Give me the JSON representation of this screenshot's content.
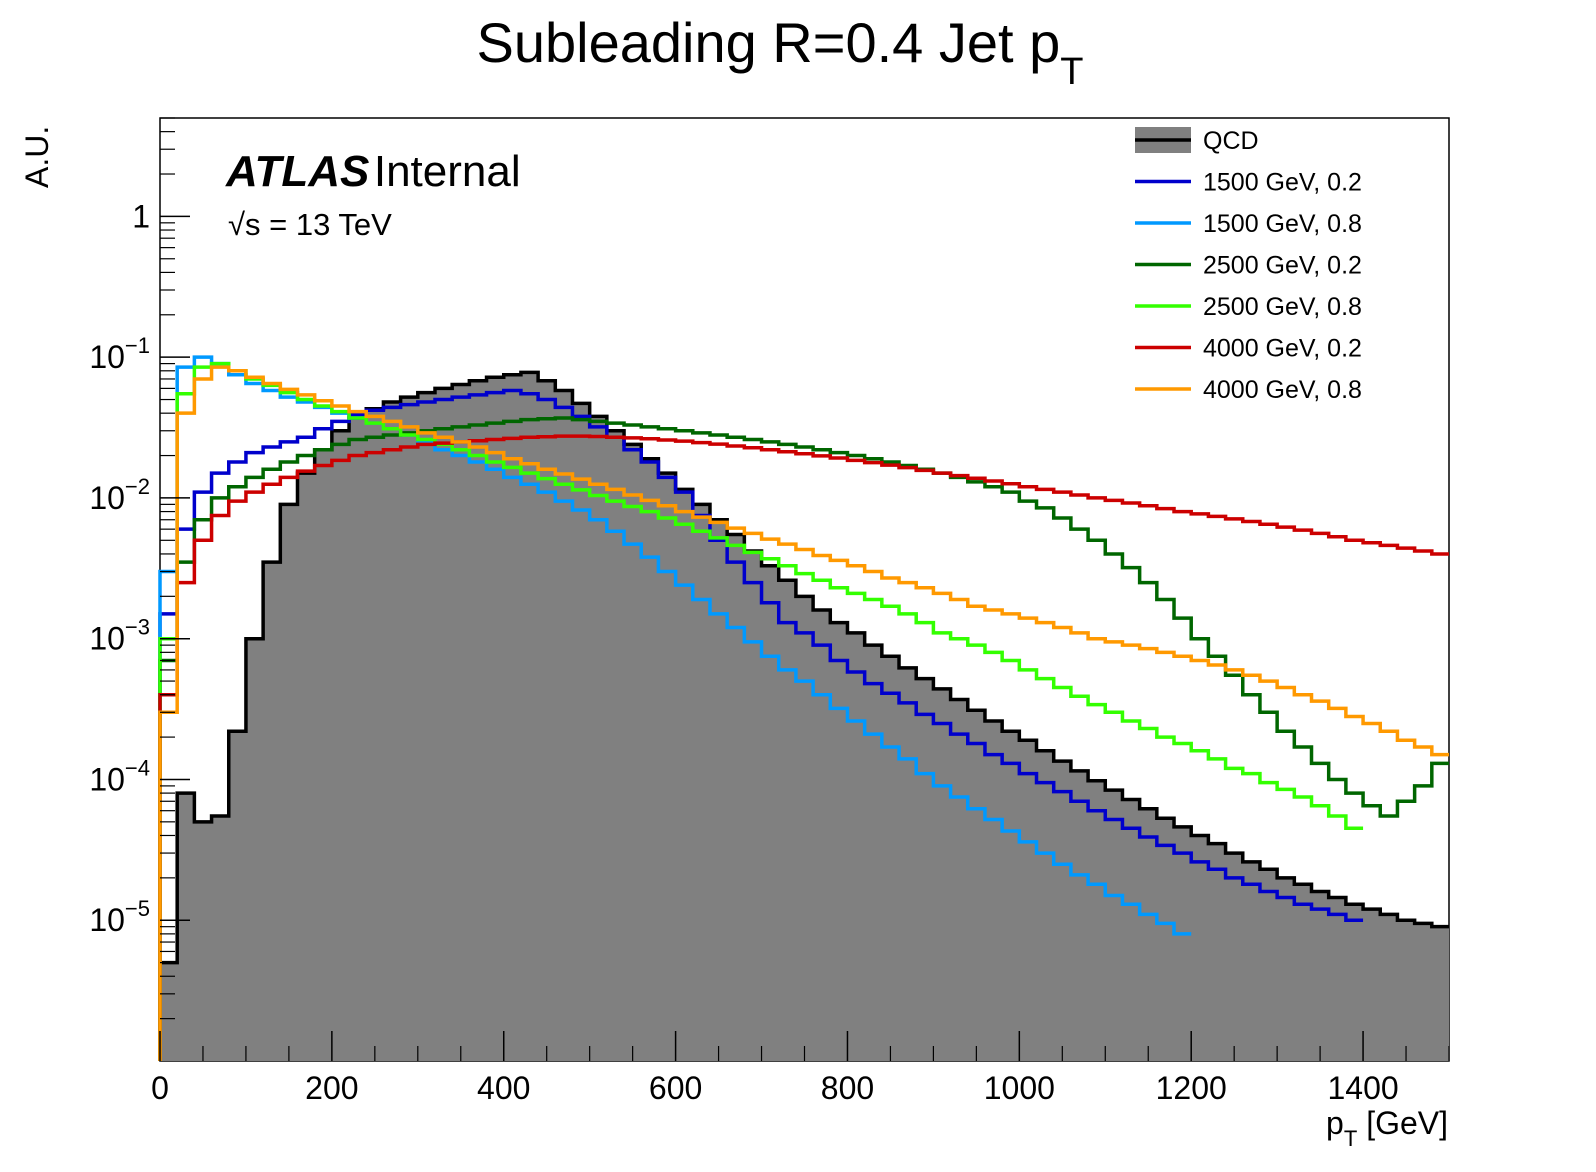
{
  "chart_data": {
    "type": "histogram",
    "title": {
      "main": "Subleading R=0.4 Jet p",
      "sub": "T"
    },
    "xlabel": {
      "main": "p",
      "sub": "T",
      "unit": " [GeV]"
    },
    "ylabel": "A.U.",
    "xlim": [
      0,
      1500
    ],
    "ylim": [
      1e-06,
      5
    ],
    "log_y": true,
    "grid": false,
    "x_ticks": [
      "0",
      "200",
      "400",
      "600",
      "800",
      "1000",
      "1200",
      "1400"
    ],
    "y_ticks": [
      {
        "value": 1,
        "base": "1",
        "exp": ""
      },
      {
        "value": 0.1,
        "base": "10",
        "exp": "−1"
      },
      {
        "value": 0.01,
        "base": "10",
        "exp": "−2"
      },
      {
        "value": 0.001,
        "base": "10",
        "exp": "−3"
      },
      {
        "value": 0.0001,
        "base": "10",
        "exp": "−4"
      },
      {
        "value": 1e-05,
        "base": "10",
        "exp": "−5"
      }
    ],
    "atlas_label": {
      "bold": "ATLAS",
      "normal": "Internal"
    },
    "energy_label": {
      "root": "√",
      "text": "s = 13 TeV"
    },
    "legend_position": "top-right",
    "bin_width": 20,
    "series": [
      {
        "name": "QCD",
        "color": "#000000",
        "fill": "#808080",
        "style": "filled",
        "values": [
          5e-06,
          8e-05,
          5e-05,
          5.5e-05,
          0.00022,
          0.001,
          0.0035,
          0.009,
          0.015,
          0.022,
          0.03,
          0.037,
          0.043,
          0.048,
          0.052,
          0.056,
          0.06,
          0.064,
          0.068,
          0.072,
          0.075,
          0.078,
          0.068,
          0.058,
          0.047,
          0.038,
          0.03,
          0.024,
          0.019,
          0.015,
          0.0115,
          0.009,
          0.007,
          0.0055,
          0.0042,
          0.0033,
          0.0026,
          0.002,
          0.0016,
          0.0013,
          0.0011,
          0.0009,
          0.00075,
          0.00062,
          0.00052,
          0.00044,
          0.00037,
          0.00031,
          0.00026,
          0.00022,
          0.00019,
          0.00016,
          0.000135,
          0.000115,
          9.8e-05,
          8.4e-05,
          7.2e-05,
          6.2e-05,
          5.3e-05,
          4.6e-05,
          4e-05,
          3.5e-05,
          3e-05,
          2.6e-05,
          2.3e-05,
          2e-05,
          1.8e-05,
          1.6e-05,
          1.45e-05,
          1.3e-05,
          1.2e-05,
          1.1e-05,
          1e-05,
          9.5e-06,
          9e-06
        ]
      },
      {
        "name": "1500 GeV, 0.2",
        "color": "#0000cc",
        "style": "line",
        "values": [
          0.0015,
          0.006,
          0.011,
          0.015,
          0.018,
          0.021,
          0.023,
          0.025,
          0.027,
          0.031,
          0.035,
          0.039,
          0.042,
          0.044,
          0.046,
          0.048,
          0.05,
          0.052,
          0.054,
          0.056,
          0.058,
          0.055,
          0.05,
          0.044,
          0.038,
          0.032,
          0.027,
          0.022,
          0.018,
          0.014,
          0.011,
          0.0075,
          0.005,
          0.0035,
          0.0025,
          0.0018,
          0.0013,
          0.0011,
          0.0009,
          0.0007,
          0.00058,
          0.00048,
          0.00041,
          0.00035,
          0.00029,
          0.00025,
          0.00021,
          0.00018,
          0.00015,
          0.00013,
          0.00011,
          9.5e-05,
          8.2e-05,
          7e-05,
          6e-05,
          5.2e-05,
          4.5e-05,
          3.9e-05,
          3.4e-05,
          3e-05,
          2.6e-05,
          2.3e-05,
          2e-05,
          1.8e-05,
          1.6e-05,
          1.45e-05,
          1.3e-05,
          1.2e-05,
          1.1e-05,
          1e-05
        ]
      },
      {
        "name": "1500 GeV, 0.8",
        "color": "#0099ff",
        "style": "line",
        "values": [
          0.003,
          0.085,
          0.1,
          0.09,
          0.075,
          0.065,
          0.058,
          0.052,
          0.048,
          0.044,
          0.04,
          0.037,
          0.034,
          0.031,
          0.028,
          0.025,
          0.022,
          0.02,
          0.018,
          0.016,
          0.014,
          0.0125,
          0.011,
          0.0095,
          0.0082,
          0.007,
          0.0058,
          0.0047,
          0.0038,
          0.003,
          0.0024,
          0.0019,
          0.0015,
          0.0012,
          0.00095,
          0.00075,
          0.0006,
          0.0005,
          0.0004,
          0.00032,
          0.00026,
          0.00021,
          0.00017,
          0.00014,
          0.00011,
          9e-05,
          7.5e-05,
          6.2e-05,
          5.2e-05,
          4.3e-05,
          3.6e-05,
          3e-05,
          2.5e-05,
          2.1e-05,
          1.8e-05,
          1.5e-05,
          1.3e-05,
          1.1e-05,
          9.5e-06,
          8e-06
        ]
      },
      {
        "name": "2500 GeV, 0.2",
        "color": "#006600",
        "style": "line",
        "values": [
          0.0007,
          0.0035,
          0.007,
          0.01,
          0.012,
          0.014,
          0.016,
          0.018,
          0.02,
          0.022,
          0.024,
          0.026,
          0.027,
          0.028,
          0.029,
          0.03,
          0.031,
          0.032,
          0.033,
          0.034,
          0.035,
          0.036,
          0.0365,
          0.037,
          0.036,
          0.035,
          0.034,
          0.033,
          0.032,
          0.031,
          0.03,
          0.029,
          0.028,
          0.027,
          0.026,
          0.025,
          0.024,
          0.023,
          0.022,
          0.021,
          0.02,
          0.019,
          0.018,
          0.017,
          0.016,
          0.015,
          0.014,
          0.013,
          0.012,
          0.011,
          0.0095,
          0.0085,
          0.0072,
          0.006,
          0.005,
          0.004,
          0.0032,
          0.0025,
          0.0019,
          0.0014,
          0.001,
          0.00075,
          0.00055,
          0.0004,
          0.0003,
          0.00022,
          0.00017,
          0.00013,
          0.0001,
          8e-05,
          6.5e-05,
          5.5e-05,
          7e-05,
          9e-05,
          0.00013
        ]
      },
      {
        "name": "2500 GeV, 0.8",
        "color": "#33ff00",
        "style": "line",
        "values": [
          0.001,
          0.055,
          0.085,
          0.09,
          0.08,
          0.07,
          0.063,
          0.056,
          0.05,
          0.045,
          0.041,
          0.037,
          0.034,
          0.031,
          0.028,
          0.026,
          0.024,
          0.022,
          0.02,
          0.018,
          0.0165,
          0.015,
          0.0137,
          0.0125,
          0.0114,
          0.0104,
          0.0095,
          0.0087,
          0.008,
          0.0072,
          0.0065,
          0.0058,
          0.0052,
          0.0046,
          0.0041,
          0.0037,
          0.0033,
          0.0029,
          0.0026,
          0.0023,
          0.0021,
          0.0019,
          0.0017,
          0.0015,
          0.0013,
          0.0011,
          0.001,
          0.0009,
          0.0008,
          0.0007,
          0.0006,
          0.00052,
          0.00045,
          0.00039,
          0.00034,
          0.0003,
          0.00026,
          0.00023,
          0.0002,
          0.00018,
          0.00016,
          0.00014,
          0.00012,
          0.00011,
          9.5e-05,
          8.5e-05,
          7.5e-05,
          6.5e-05,
          5.5e-05,
          4.5e-05
        ]
      },
      {
        "name": "4000 GeV, 0.2",
        "color": "#cc0000",
        "style": "line",
        "values": [
          0.0004,
          0.0025,
          0.005,
          0.0075,
          0.0095,
          0.011,
          0.0125,
          0.014,
          0.0155,
          0.017,
          0.0185,
          0.02,
          0.021,
          0.022,
          0.023,
          0.024,
          0.0245,
          0.025,
          0.0255,
          0.026,
          0.0265,
          0.027,
          0.0272,
          0.0275,
          0.0275,
          0.0273,
          0.027,
          0.0267,
          0.0263,
          0.0258,
          0.0253,
          0.0247,
          0.0241,
          0.0234,
          0.0227,
          0.022,
          0.0213,
          0.0206,
          0.0199,
          0.0192,
          0.0185,
          0.0178,
          0.0171,
          0.0164,
          0.0157,
          0.015,
          0.0144,
          0.0138,
          0.0132,
          0.0126,
          0.012,
          0.0115,
          0.011,
          0.0105,
          0.01,
          0.0096,
          0.0092,
          0.0088,
          0.0084,
          0.008,
          0.0077,
          0.0074,
          0.0071,
          0.0068,
          0.0065,
          0.0062,
          0.0059,
          0.0056,
          0.0053,
          0.005,
          0.0048,
          0.0046,
          0.0044,
          0.0042,
          0.004
        ]
      },
      {
        "name": "4000 GeV, 0.8",
        "color": "#ff9900",
        "style": "line",
        "values": [
          0.0003,
          0.04,
          0.07,
          0.085,
          0.08,
          0.072,
          0.065,
          0.059,
          0.054,
          0.049,
          0.045,
          0.041,
          0.038,
          0.035,
          0.032,
          0.029,
          0.027,
          0.025,
          0.023,
          0.021,
          0.019,
          0.0175,
          0.016,
          0.0148,
          0.0136,
          0.0125,
          0.0115,
          0.0105,
          0.0096,
          0.0088,
          0.008,
          0.0073,
          0.0067,
          0.0061,
          0.0056,
          0.0051,
          0.0047,
          0.0043,
          0.0039,
          0.0036,
          0.0033,
          0.003,
          0.0027,
          0.0025,
          0.0023,
          0.0021,
          0.0019,
          0.0017,
          0.0016,
          0.0015,
          0.0014,
          0.0013,
          0.0012,
          0.0011,
          0.001,
          0.00095,
          0.0009,
          0.00085,
          0.0008,
          0.00075,
          0.0007,
          0.00065,
          0.0006,
          0.00055,
          0.0005,
          0.00045,
          0.0004,
          0.00036,
          0.00032,
          0.00028,
          0.00025,
          0.00022,
          0.00019,
          0.00017,
          0.00015
        ]
      }
    ]
  }
}
